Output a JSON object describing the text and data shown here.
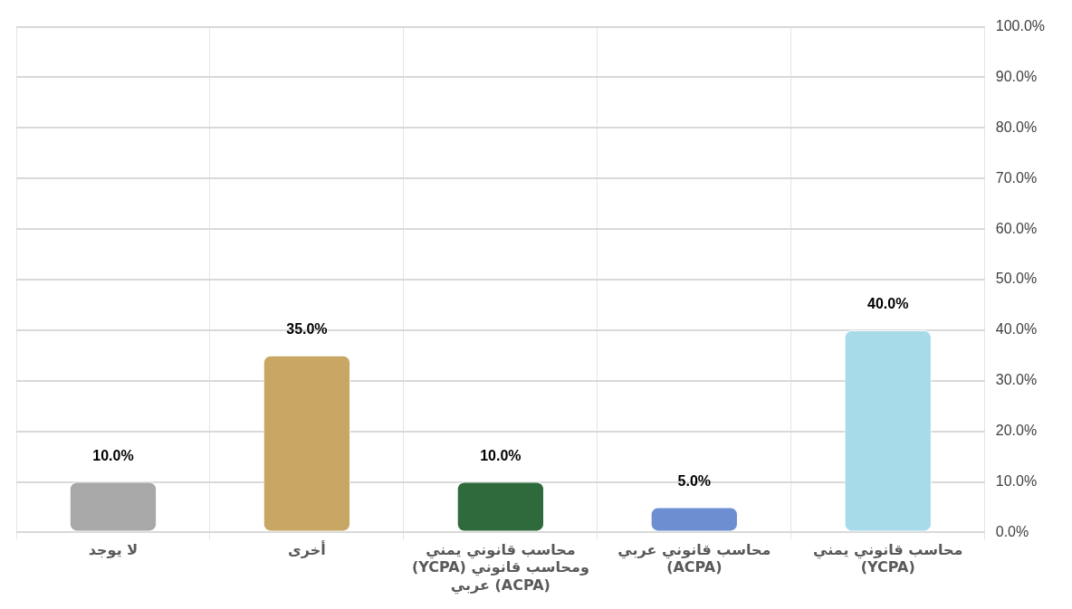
{
  "chart_data": {
    "type": "bar",
    "categories": [
      "لا يوجد",
      "أخرى",
      "محاسب قانوني يمني (YCPA) ومحاسب قانوني عربي (ACPA)",
      "محاسب قانوني عربي (ACPA)",
      "محاسب قانوني يمني (YCPA)"
    ],
    "values": [
      10,
      35,
      10,
      5,
      40
    ],
    "colors": [
      "#a8a8a8",
      "#c8a663",
      "#2f6a3c",
      "#6d8fd2",
      "#a8dbe9"
    ],
    "value_labels": [
      "10.0%",
      "35.0%",
      "10.0%",
      "5.0%",
      "40.0%"
    ],
    "ylim": [
      0,
      100
    ],
    "yticks": [
      {
        "value": 0,
        "label": "0.0%"
      },
      {
        "value": 10,
        "label": "10.0%"
      },
      {
        "value": 20,
        "label": "20.0%"
      },
      {
        "value": 30,
        "label": "30.0%"
      },
      {
        "value": 40,
        "label": "40.0%"
      },
      {
        "value": 50,
        "label": "50.0%"
      },
      {
        "value": 60,
        "label": "60.0%"
      },
      {
        "value": 70,
        "label": "70.0%"
      },
      {
        "value": 80,
        "label": "80.0%"
      },
      {
        "value": 90,
        "label": "90.0%"
      },
      {
        "value": 100,
        "label": "100.0%"
      }
    ],
    "grid": true,
    "legend": false
  }
}
